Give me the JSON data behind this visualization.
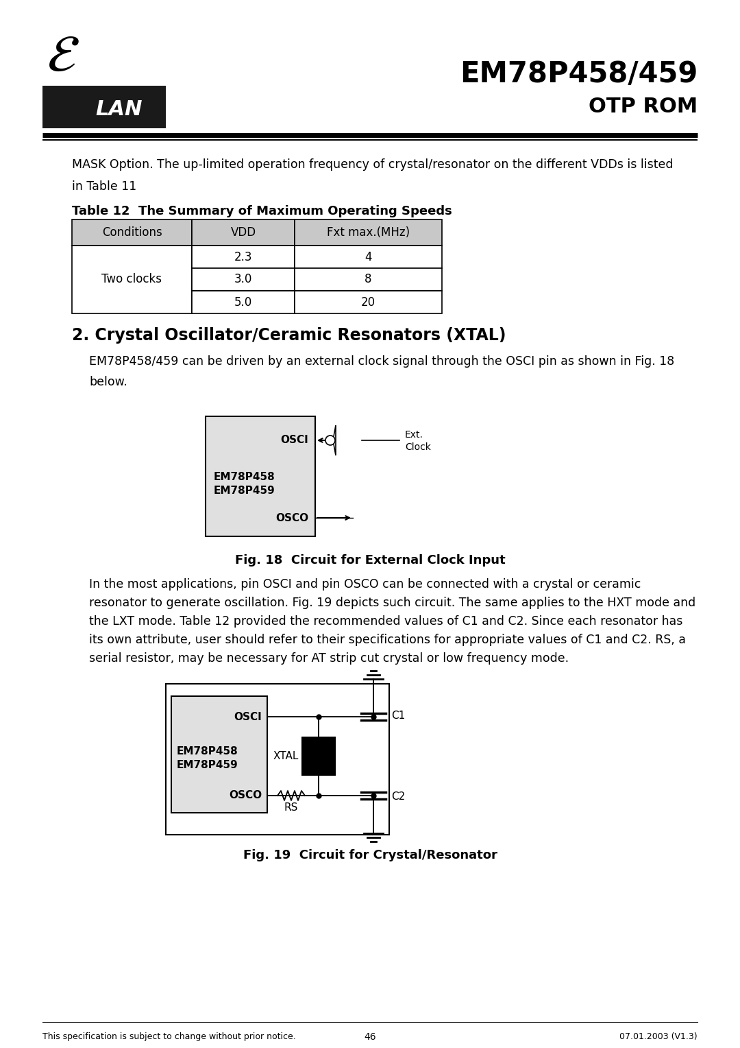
{
  "title": "EM78P458/459",
  "subtitle": "OTP ROM",
  "header_line1": "MASK Option. The up-limited operation frequency of crystal/resonator on the different VDDs is listed",
  "header_line2": "in Table 11",
  "table_title": "Table 12  The Summary of Maximum Operating Speeds",
  "table_headers": [
    "Conditions",
    "VDD",
    "Fxt max.(MHz)"
  ],
  "table_row_label": "Two clocks",
  "table_data": [
    [
      "2.3",
      "4"
    ],
    [
      "3.0",
      "8"
    ],
    [
      "5.0",
      "20"
    ]
  ],
  "section_title": "2. Crystal Oscillator/Ceramic Resonators (XTAL)",
  "para1_line1": "EM78P458/459 can be driven by an external clock signal through the OSCI pin as shown in Fig. 18",
  "para1_line2": "below.",
  "fig18_caption": "Fig. 18  Circuit for External Clock Input",
  "fig18_osci": "OSCI",
  "fig18_em1": "EM78P458",
  "fig18_em2": "EM78P459",
  "fig18_osco": "OSCO",
  "fig18_ext1": "Ext.",
  "fig18_ext2": "Clock",
  "para2_lines": [
    "In the most applications, pin OSCI and pin OSCO can be connected with a crystal or ceramic",
    "resonator to generate oscillation. Fig. 19 depicts such circuit. The same applies to the HXT mode and",
    "the LXT mode. Table 12 provided the recommended values of C1 and C2. Since each resonator has",
    "its own attribute, user should refer to their specifications for appropriate values of C1 and C2. RS, a",
    "serial resistor, may be necessary for AT strip cut crystal or low frequency mode."
  ],
  "fig19_caption": "Fig. 19  Circuit for Crystal/Resonator",
  "fig19_osci": "OSCI",
  "fig19_em1": "EM78P458",
  "fig19_em2": "EM78P459",
  "fig19_osco": "OSCO",
  "fig19_xtal": "XTAL",
  "fig19_c1": "C1",
  "fig19_c2": "C2",
  "fig19_rs": "RS",
  "footer_left": "This specification is subject to change without prior notice.",
  "footer_center": "46",
  "footer_right": "07.01.2003 (V1.3)",
  "bg_color": "#ffffff",
  "table_header_bg": "#c8c8c8",
  "table_cell_bg": "#ffffff",
  "table_border": "#000000",
  "logo_bg": "#1a1a1a"
}
